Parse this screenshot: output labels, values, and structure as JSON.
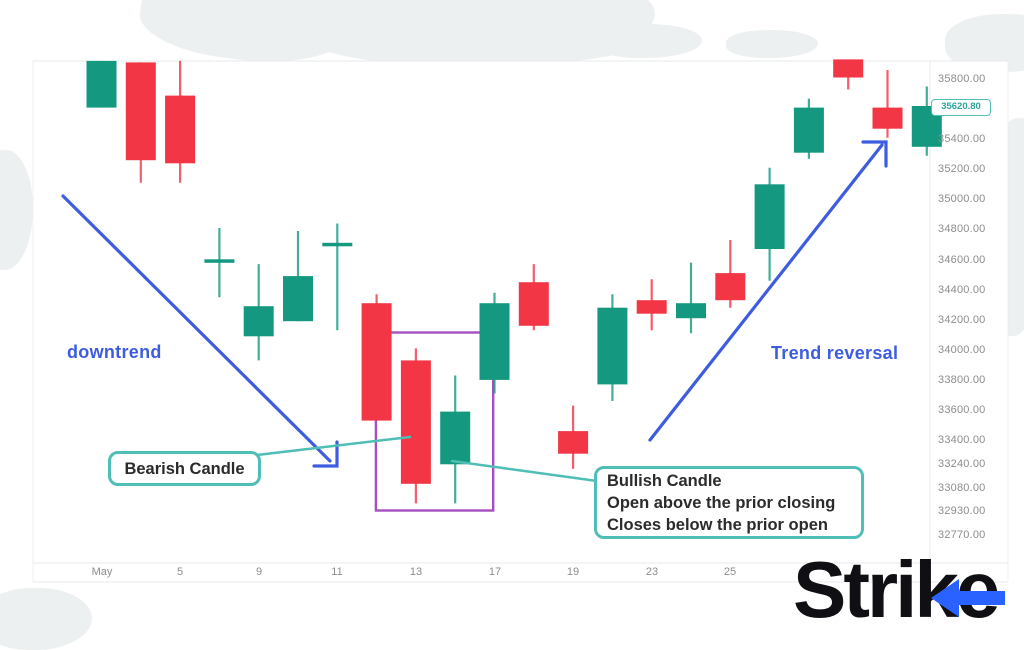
{
  "annotations": {
    "downtrend_label": "downtrend",
    "trend_reversal_label": "Trend reversal",
    "bearish_callout": "Bearish Candle",
    "bullish_callout_lines": [
      "Bullish Candle",
      "Open above the prior closing",
      "Closes below the prior open"
    ]
  },
  "price_badge": {
    "value": "35620.80"
  },
  "logo": {
    "part1": "Stri",
    "part2": "k",
    "part3": "e"
  },
  "colors": {
    "bull_green": "#149980",
    "bear_red": "#F23645",
    "arrow_blue": "#3D5CE0",
    "callout_teal": "#4FBEB6",
    "pattern_box_purple": "#A64FC0",
    "axis_text_gray": "#8D8D8D",
    "badge_teal": "#2AA39B",
    "logo_black": "#0F0F14",
    "logo_blue": "#2962FF"
  },
  "chart_data": {
    "type": "candlestick",
    "title": "",
    "grid": "off",
    "legend": "none",
    "last_price": "35620.80",
    "y_axis": {
      "side": "right",
      "labels": [
        "35800.00",
        "35400.00",
        "35200.00",
        "35000.00",
        "34800.00",
        "34600.00",
        "34400.00",
        "34200.00",
        "34000.00",
        "33800.00",
        "33600.00",
        "33400.00",
        "33240.00",
        "33080.00",
        "32930.00",
        "32770.00"
      ],
      "range": [
        32700,
        35950
      ]
    },
    "x_axis": {
      "labels": [
        {
          "text": "May",
          "index": 0
        },
        {
          "text": "5",
          "index": 2
        },
        {
          "text": "9",
          "index": 4
        },
        {
          "text": "11",
          "index": 6
        },
        {
          "text": "13",
          "index": 8
        },
        {
          "text": "17",
          "index": 10
        },
        {
          "text": "19",
          "index": 12
        },
        {
          "text": "23",
          "index": 14
        },
        {
          "text": "25",
          "index": 16
        }
      ]
    },
    "candles": [
      {
        "open": 35610,
        "high": 35920,
        "low": 35610,
        "close": 35920
      },
      {
        "open": 35910,
        "high": 35910,
        "low": 35110,
        "close": 35260
      },
      {
        "open": 35690,
        "high": 35920,
        "low": 35110,
        "close": 35240
      },
      {
        "open": 34590,
        "high": 34810,
        "low": 34350,
        "close": 34590,
        "doji": true
      },
      {
        "open": 34090,
        "high": 34570,
        "low": 33930,
        "close": 34290
      },
      {
        "open": 34190,
        "high": 34790,
        "low": 34190,
        "close": 34490
      },
      {
        "open": 34700,
        "high": 34840,
        "low": 34130,
        "close": 34700,
        "doji": true
      },
      {
        "open": 34310,
        "high": 34370,
        "low": 33530,
        "close": 33530
      },
      {
        "open": 33930,
        "high": 34010,
        "low": 32980,
        "close": 33110
      },
      {
        "open": 33240,
        "high": 33830,
        "low": 32980,
        "close": 33590
      },
      {
        "open": 33800,
        "high": 34380,
        "low": 33710,
        "close": 34310
      },
      {
        "open": 34450,
        "high": 34570,
        "low": 34130,
        "close": 34160
      },
      {
        "open": 33460,
        "high": 33630,
        "low": 33210,
        "close": 33310
      },
      {
        "open": 33770,
        "high": 34370,
        "low": 33660,
        "close": 34280
      },
      {
        "open": 34330,
        "high": 34470,
        "low": 34130,
        "close": 34240
      },
      {
        "open": 34210,
        "high": 34580,
        "low": 34110,
        "close": 34310
      },
      {
        "open": 34510,
        "high": 34730,
        "low": 34280,
        "close": 34330
      },
      {
        "open": 34670,
        "high": 35210,
        "low": 34460,
        "close": 35100
      },
      {
        "open": 35310,
        "high": 35670,
        "low": 35270,
        "close": 35610
      },
      {
        "open": 35930,
        "high": 35930,
        "low": 35730,
        "close": 35810
      },
      {
        "open": 35610,
        "high": 35860,
        "low": 35410,
        "close": 35470
      },
      {
        "open": 35350,
        "high": 35750,
        "low": 35290,
        "close": 35620.8
      }
    ],
    "pattern_box_candle_indexes": [
      8,
      9
    ]
  }
}
